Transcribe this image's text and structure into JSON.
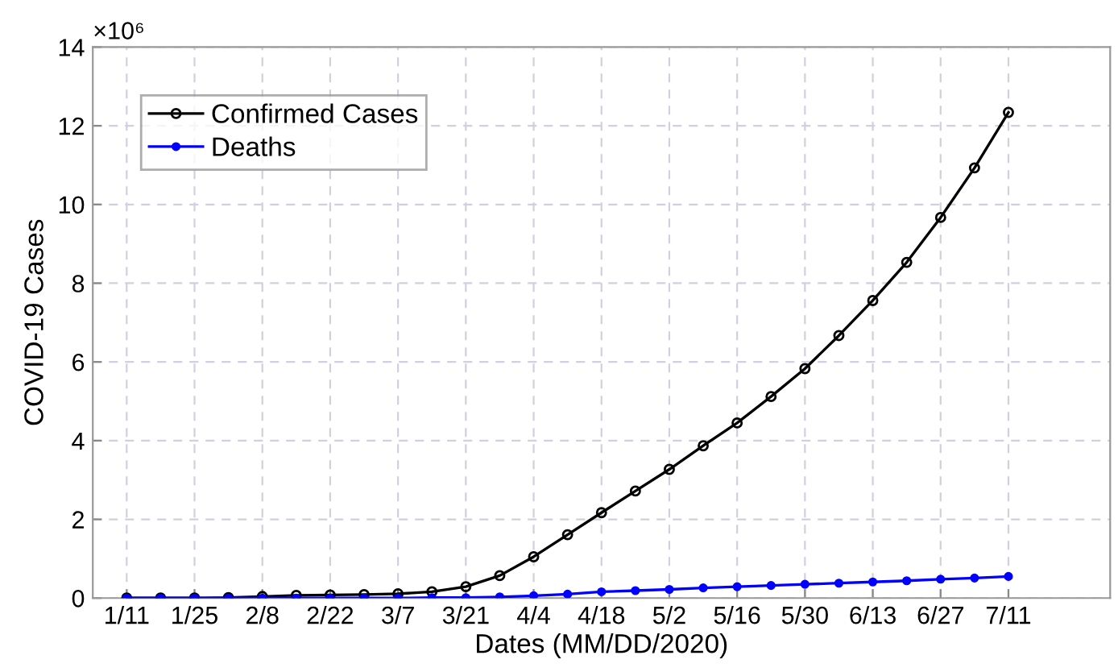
{
  "chart_data": {
    "type": "line",
    "xlabel": "Dates (MM/DD/2020)",
    "ylabel": "COVID-19 Cases",
    "annotations": [
      "×10⁶"
    ],
    "x": [
      "2020-01-11",
      "2020-01-18",
      "2020-01-25",
      "2020-02-01",
      "2020-02-08",
      "2020-02-15",
      "2020-02-22",
      "2020-02-29",
      "2020-03-07",
      "2020-03-14",
      "2020-03-21",
      "2020-03-28",
      "2020-04-04",
      "2020-04-11",
      "2020-04-18",
      "2020-04-25",
      "2020-05-02",
      "2020-05-09",
      "2020-05-16",
      "2020-05-23",
      "2020-05-30",
      "2020-06-06",
      "2020-06-13",
      "2020-06-20",
      "2020-06-27",
      "2020-07-04",
      "2020-07-11"
    ],
    "series": [
      {
        "name": "Confirmed Cases",
        "color": "#000000",
        "marker": "circle",
        "values": [
          0,
          0,
          0,
          0.01,
          0.04,
          0.07,
          0.08,
          0.09,
          0.11,
          0.16,
          0.29,
          0.57,
          1.05,
          1.61,
          2.17,
          2.72,
          3.27,
          3.87,
          4.45,
          5.12,
          5.83,
          6.67,
          7.56,
          8.53,
          9.67,
          10.93,
          12.34
        ]
      },
      {
        "name": "Deaths",
        "color": "#0000ff",
        "marker": "circle",
        "values": [
          0,
          0,
          0,
          0,
          0,
          0,
          0,
          0,
          0,
          0.01,
          0.01,
          0.03,
          0.06,
          0.1,
          0.16,
          0.19,
          0.22,
          0.26,
          0.29,
          0.32,
          0.35,
          0.38,
          0.41,
          0.44,
          0.48,
          0.51,
          0.55
        ]
      }
    ],
    "xlim": [
      "2020-01-04",
      "2020-08-01"
    ],
    "xticks": [
      {
        "value": "2020-01-11",
        "label": "1/11"
      },
      {
        "value": "2020-01-25",
        "label": "1/25"
      },
      {
        "value": "2020-02-08",
        "label": "2/8"
      },
      {
        "value": "2020-02-22",
        "label": "2/22"
      },
      {
        "value": "2020-03-07",
        "label": "3/7"
      },
      {
        "value": "2020-03-21",
        "label": "3/21"
      },
      {
        "value": "2020-04-04",
        "label": "4/4"
      },
      {
        "value": "2020-04-18",
        "label": "4/18"
      },
      {
        "value": "2020-05-02",
        "label": "5/2"
      },
      {
        "value": "2020-05-16",
        "label": "5/16"
      },
      {
        "value": "2020-05-30",
        "label": "5/30"
      },
      {
        "value": "2020-06-13",
        "label": "6/13"
      },
      {
        "value": "2020-06-27",
        "label": "6/27"
      },
      {
        "value": "2020-07-11",
        "label": "7/11"
      }
    ],
    "ylim": [
      0,
      14
    ],
    "yticks": [
      0,
      2,
      4,
      6,
      8,
      10,
      12,
      14
    ],
    "grid": true,
    "legend": "top left",
    "line_style": "solid"
  }
}
